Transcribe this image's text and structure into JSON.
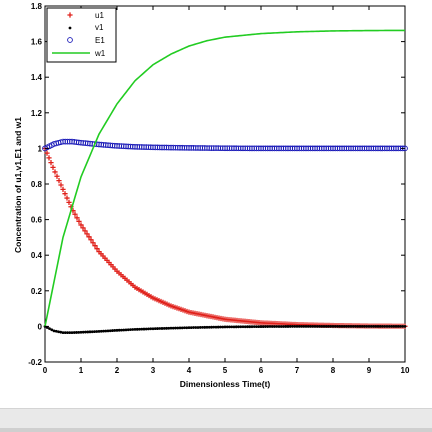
{
  "chart_data": {
    "type": "line",
    "title": "",
    "xlabel": "Dimensionless Time(t)",
    "ylabel": "Concentration of u1,v1,E1 and w1",
    "xlim": [
      0,
      10
    ],
    "ylim": [
      -0.2,
      1.8
    ],
    "xticks": [
      0,
      1,
      2,
      3,
      4,
      5,
      6,
      7,
      8,
      9,
      10
    ],
    "yticks": [
      -0.2,
      0,
      0.2,
      0.4,
      0.6,
      0.8,
      1,
      1.2,
      1.4,
      1.6,
      1.8
    ],
    "xtick_labels": [
      "0",
      "1",
      "2",
      "3",
      "4",
      "5",
      "6",
      "7",
      "8",
      "9",
      "10"
    ],
    "ytick_labels": [
      "-0.2",
      "0",
      "0.2",
      "0.4",
      "0.6",
      "0.8",
      "1",
      "1.2",
      "1.4",
      "1.6",
      "1.8"
    ],
    "grid": false,
    "legend": {
      "position": "top-left"
    },
    "series": [
      {
        "name": "u1",
        "marker": "plus",
        "color": "#e0201a",
        "x": [
          0,
          0.25,
          0.5,
          0.75,
          1,
          1.5,
          2,
          2.5,
          3,
          3.5,
          4,
          5,
          6,
          7,
          8,
          9,
          10
        ],
        "y": [
          1.0,
          0.88,
          0.77,
          0.66,
          0.57,
          0.42,
          0.31,
          0.22,
          0.16,
          0.115,
          0.08,
          0.04,
          0.02,
          0.01,
          0.005,
          0.002,
          0.001
        ]
      },
      {
        "name": "v1",
        "marker": "dot",
        "color": "#000000",
        "x": [
          0,
          0.25,
          0.5,
          0.75,
          1,
          1.5,
          2,
          2.5,
          3,
          4,
          5,
          6,
          7,
          8,
          9,
          10
        ],
        "y": [
          0.0,
          -0.025,
          -0.035,
          -0.035,
          -0.033,
          -0.028,
          -0.022,
          -0.017,
          -0.013,
          -0.007,
          -0.003,
          -0.001,
          0.0,
          0.0,
          0.0,
          0.0
        ]
      },
      {
        "name": "E1",
        "marker": "circle",
        "color": "#1a1ab8",
        "x": [
          0,
          0.25,
          0.5,
          0.75,
          1,
          1.5,
          2,
          2.5,
          3,
          4,
          5,
          6,
          7,
          8,
          9,
          10
        ],
        "y": [
          1.0,
          1.025,
          1.038,
          1.038,
          1.032,
          1.022,
          1.014,
          1.009,
          1.006,
          1.003,
          1.001,
          1.0,
          1.0,
          1.0,
          1.0,
          1.0
        ]
      },
      {
        "name": "w1",
        "marker": "line",
        "color": "#22cc22",
        "x": [
          0,
          0.5,
          1,
          1.5,
          2,
          2.5,
          3,
          3.5,
          4,
          4.5,
          5,
          6,
          7,
          8,
          9,
          10
        ],
        "y": [
          0.0,
          0.5,
          0.84,
          1.08,
          1.25,
          1.38,
          1.47,
          1.53,
          1.575,
          1.605,
          1.625,
          1.645,
          1.655,
          1.66,
          1.662,
          1.663
        ]
      }
    ]
  }
}
